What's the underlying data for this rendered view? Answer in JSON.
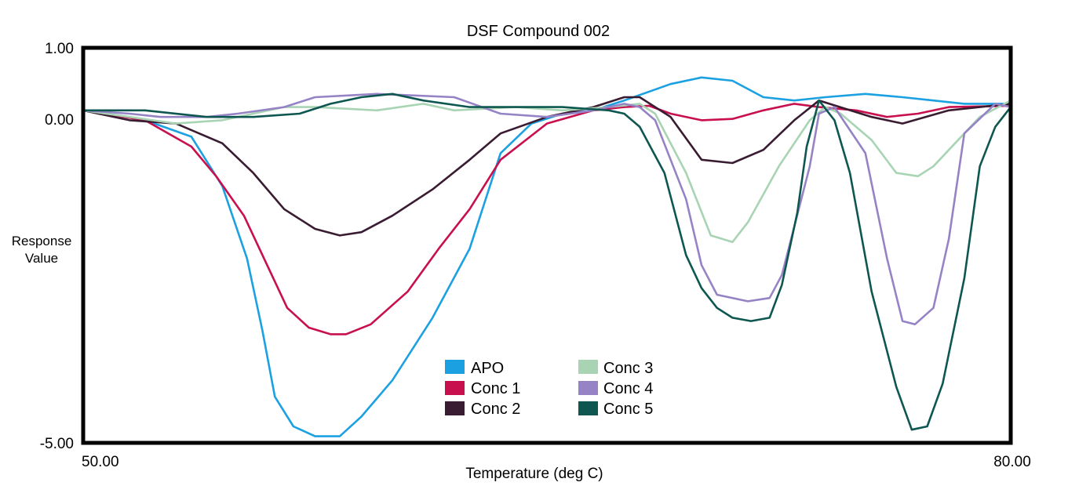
{
  "chart_data": {
    "type": "line",
    "title": "DSF Compound 002",
    "xlabel": "Temperature (deg C)",
    "ylabel_lines": [
      "Response",
      "Value"
    ],
    "x_ticks": [
      "50.00",
      "80.00"
    ],
    "y_ticks": [
      "1.00",
      "0.00",
      "-5.00"
    ],
    "xlim": [
      50,
      80
    ],
    "ylim": [
      -5,
      1
    ],
    "grid": false,
    "legend_position": "bottom-center",
    "series": [
      {
        "name": "APO",
        "color": "#1ba1e2",
        "x": [
          50,
          52,
          53.5,
          54.5,
          55.3,
          55.8,
          56.2,
          56.8,
          57.5,
          58.3,
          59,
          60,
          61.3,
          62.5,
          63.5,
          64.5,
          65.5,
          66.5,
          67.5,
          69,
          70,
          71,
          72,
          73,
          74,
          75.3,
          76.5,
          77.5,
          78.5,
          80
        ],
        "y": [
          0.05,
          -0.1,
          -0.35,
          -1.1,
          -2.2,
          -3.3,
          -4.3,
          -4.75,
          -4.9,
          -4.9,
          -4.6,
          -4.05,
          -3.1,
          -2.05,
          -0.6,
          -0.15,
          0.0,
          0.05,
          0.2,
          0.45,
          0.55,
          0.5,
          0.25,
          0.2,
          0.25,
          0.3,
          0.25,
          0.2,
          0.15,
          0.15
        ]
      },
      {
        "name": "Conc 1",
        "color": "#c8104f",
        "x": [
          50,
          52,
          53.5,
          54.3,
          55.2,
          56,
          56.6,
          57.3,
          58,
          58.5,
          59.3,
          60.5,
          61.5,
          62.5,
          63.5,
          65,
          66.5,
          67.5,
          68.3,
          69,
          70,
          71,
          72,
          73,
          73.8,
          75,
          76,
          77,
          78,
          80
        ],
        "y": [
          0.05,
          -0.1,
          -0.5,
          -0.95,
          -1.55,
          -2.35,
          -2.95,
          -3.25,
          -3.35,
          -3.35,
          -3.2,
          -2.7,
          -2.05,
          -1.45,
          -0.7,
          -0.15,
          0.05,
          0.1,
          0.12,
          0.0,
          -0.1,
          -0.08,
          0.05,
          0.15,
          0.1,
          0.05,
          -0.05,
          0.0,
          0.1,
          0.12
        ]
      },
      {
        "name": "Conc 2",
        "color": "#3a1c32",
        "x": [
          50,
          51.5,
          53,
          54.5,
          55.5,
          56.5,
          57.5,
          58.3,
          59,
          60,
          61.3,
          62.5,
          63.5,
          65,
          66.5,
          67.5,
          68,
          69,
          70,
          71,
          72,
          73,
          73.8,
          75.5,
          76.5,
          78,
          80
        ],
        "y": [
          0.05,
          -0.1,
          -0.15,
          -0.45,
          -0.9,
          -1.45,
          -1.75,
          -1.85,
          -1.8,
          -1.55,
          -1.15,
          -0.7,
          -0.3,
          -0.05,
          0.1,
          0.25,
          0.25,
          -0.05,
          -0.7,
          -0.75,
          -0.55,
          -0.1,
          0.2,
          -0.05,
          -0.15,
          0.05,
          0.15
        ]
      },
      {
        "name": "Conc 3",
        "color": "#a8d4b4",
        "x": [
          50,
          51.5,
          53,
          54.5,
          55.5,
          56.5,
          57.5,
          59.5,
          61,
          62,
          64,
          65.5,
          67,
          68,
          68.5,
          69.5,
          70.3,
          71,
          71.5,
          72.5,
          73.5,
          74,
          74.5,
          75.5,
          76.3,
          77,
          77.5,
          79,
          80
        ],
        "y": [
          0.05,
          -0.05,
          -0.15,
          -0.1,
          0.0,
          0.1,
          0.1,
          0.05,
          0.15,
          0.05,
          0.1,
          0.05,
          0.1,
          0.15,
          0.0,
          -0.9,
          -1.85,
          -1.95,
          -1.65,
          -0.8,
          -0.1,
          0.1,
          0.0,
          -0.4,
          -0.9,
          -0.95,
          -0.8,
          -0.05,
          0.2
        ]
      },
      {
        "name": "Conc 4",
        "color": "#9583c6",
        "x": [
          50,
          51.5,
          52.5,
          54,
          55,
          56.5,
          57.5,
          59.5,
          62,
          63.5,
          65,
          66.5,
          67.5,
          68,
          68.5,
          69.5,
          70,
          70.5,
          71.5,
          72.2,
          72.6,
          73.5,
          73.8,
          74.3,
          75.3,
          76,
          76.5,
          76.9,
          77.5,
          78,
          78.5,
          79.5,
          80
        ],
        "y": [
          0.05,
          0.0,
          -0.05,
          -0.05,
          0.0,
          0.1,
          0.25,
          0.3,
          0.25,
          0.0,
          -0.05,
          0.05,
          0.15,
          0.1,
          -0.1,
          -1.3,
          -2.3,
          -2.75,
          -2.85,
          -2.8,
          -2.45,
          -0.8,
          0.0,
          0.1,
          -0.6,
          -2.2,
          -3.15,
          -3.2,
          -2.95,
          -1.9,
          -0.3,
          0.15,
          0.1
        ]
      },
      {
        "name": "Conc 5",
        "color": "#0e5750",
        "x": [
          50,
          52,
          54,
          55.5,
          57,
          58,
          59,
          60,
          61,
          62.5,
          64,
          65.5,
          67,
          67.5,
          68,
          68.8,
          69.5,
          70,
          70.5,
          71,
          71.6,
          72.2,
          72.6,
          73.1,
          73.4,
          73.8,
          74.3,
          74.8,
          75.5,
          76.3,
          76.8,
          77.3,
          77.8,
          78.5,
          79,
          79.5,
          80
        ],
        "y": [
          0.05,
          0.05,
          -0.05,
          -0.05,
          0.0,
          0.15,
          0.25,
          0.3,
          0.2,
          0.1,
          0.1,
          0.1,
          0.05,
          0.0,
          -0.2,
          -0.9,
          -2.15,
          -2.65,
          -2.95,
          -3.1,
          -3.15,
          -3.1,
          -2.6,
          -1.5,
          -0.5,
          0.2,
          -0.1,
          -0.9,
          -2.7,
          -4.15,
          -4.8,
          -4.75,
          -4.1,
          -2.5,
          -0.8,
          -0.2,
          0.1
        ]
      }
    ]
  }
}
